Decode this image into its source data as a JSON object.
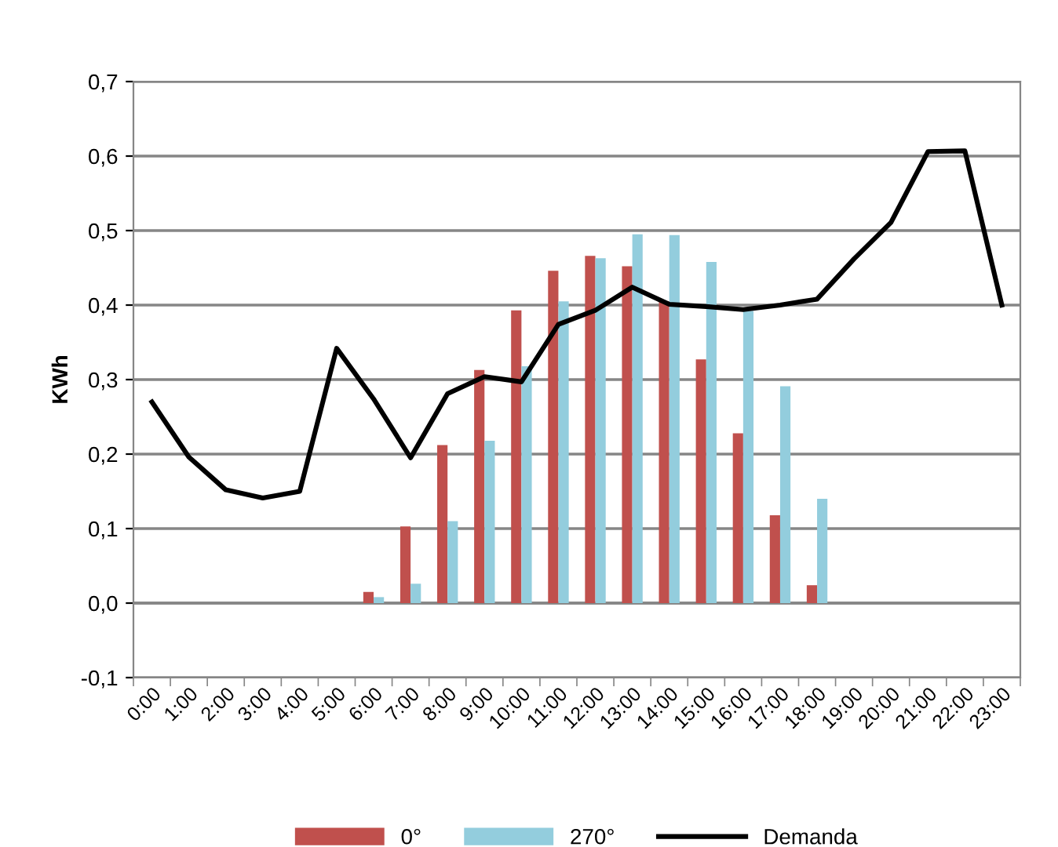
{
  "chart_data": {
    "type": "bar",
    "ylabel": "KWh",
    "categories": [
      "0:00",
      "1:00",
      "2:00",
      "3:00",
      "4:00",
      "5:00",
      "6:00",
      "7:00",
      "8:00",
      "9:00",
      "10:00",
      "11:00",
      "12:00",
      "13:00",
      "14:00",
      "15:00",
      "16:00",
      "17:00",
      "18:00",
      "19:00",
      "20:00",
      "21:00",
      "22:00",
      "23:00"
    ],
    "series": [
      {
        "name": "0°",
        "color": "#c0504d",
        "values": [
          null,
          null,
          null,
          null,
          null,
          null,
          0.015,
          0.103,
          0.212,
          0.313,
          0.393,
          0.446,
          0.466,
          0.452,
          0.405,
          0.327,
          0.228,
          0.118,
          0.024,
          null,
          null,
          null,
          null,
          null
        ]
      },
      {
        "name": "270°",
        "color": "#93cddd",
        "values": [
          null,
          null,
          null,
          null,
          null,
          null,
          0.008,
          0.026,
          0.11,
          0.218,
          0.318,
          0.405,
          0.463,
          0.495,
          0.494,
          0.458,
          0.392,
          0.291,
          0.14,
          null,
          null,
          null,
          null,
          null
        ]
      },
      {
        "name": "Demanda",
        "type": "line",
        "color": "#000000",
        "values": [
          0.27,
          0.196,
          0.152,
          0.141,
          0.15,
          0.342,
          0.274,
          0.195,
          0.281,
          0.304,
          0.297,
          0.374,
          0.393,
          0.424,
          0.401,
          0.398,
          0.394,
          0.4,
          0.408,
          0.462,
          0.511,
          0.606,
          0.607,
          0.4
        ]
      }
    ],
    "ylim": [
      -0.1,
      0.7
    ],
    "yticks": [
      {
        "value": -0.1,
        "label": "-0,1"
      },
      {
        "value": 0,
        "label": "0,0"
      },
      {
        "value": 0.1,
        "label": "0,1"
      },
      {
        "value": 0.2,
        "label": "0,2"
      },
      {
        "value": 0.3,
        "label": "0,3"
      },
      {
        "value": 0.4,
        "label": "0,4"
      },
      {
        "value": 0.5,
        "label": "0,5"
      },
      {
        "value": 0.6,
        "label": "0,6"
      },
      {
        "value": 0.7,
        "label": "0,7"
      }
    ],
    "grid": "y",
    "legend": "bottom",
    "marker": "none",
    "line_style": "solid"
  }
}
